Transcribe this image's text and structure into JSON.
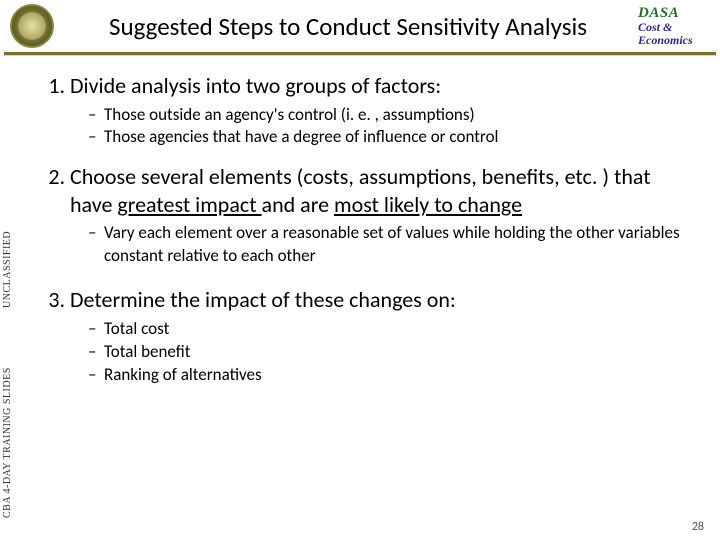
{
  "header": {
    "title": "Suggested Steps to Conduct Sensitivity Analysis",
    "org": {
      "line1": "DASA",
      "line2": "Cost &",
      "line3": "Economics"
    }
  },
  "sidebar": {
    "label_upper": "UNCLASSIFIED",
    "label_lower": "CBA 4-DAY TRAINING SLIDES"
  },
  "steps": {
    "s1": {
      "text": "Divide analysis into two groups of factors:",
      "sub": [
        "Those outside an agency's control (i. e. , assumptions)",
        "Those agencies that have a degree of influence or control"
      ]
    },
    "s2": {
      "prefix": "Choose several elements (costs, assumptions, benefits, etc. ) that have ",
      "u1": "greatest impact ",
      "mid": "and are ",
      "u2": "most likely to change",
      "sub": [
        "Vary each element over a reasonable set of values while holding the other variables constant relative to each other"
      ]
    },
    "s3": {
      "text": "Determine the impact of these changes on:",
      "sub": [
        "Total cost",
        "Total benefit",
        "Ranking of alternatives"
      ]
    }
  },
  "page_number": "28",
  "colors": {
    "divider": "#7f7030",
    "text": "#000000",
    "background": "#ffffff",
    "dasa_green": "#276c2b",
    "dasa_blue": "#2b2b80"
  },
  "typography": {
    "title_fontsize_pt": 25,
    "step_fontsize_pt": 22,
    "sub_fontsize_pt": 17,
    "sidebar_fontsize_pt": 10
  }
}
